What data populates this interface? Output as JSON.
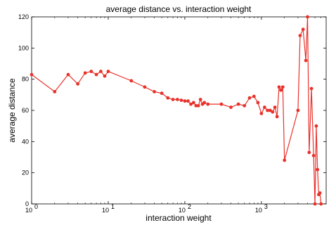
{
  "chart_data": {
    "type": "line",
    "title": "average distance vs. interaction weight",
    "xlabel": "interaction weight",
    "ylabel": "average distance",
    "xscale": "log",
    "xlim": [
      1,
      7000
    ],
    "ylim": [
      0,
      120
    ],
    "grid": false,
    "legend": "none",
    "xticks": [
      {
        "value": 1,
        "base": "10",
        "exp": "0"
      },
      {
        "value": 10,
        "base": "10",
        "exp": "1"
      },
      {
        "value": 100,
        "base": "10",
        "exp": "2"
      },
      {
        "value": 1000,
        "base": "10",
        "exp": "3"
      }
    ],
    "yticks": [
      0,
      20,
      40,
      60,
      80,
      100,
      120
    ],
    "series": [
      {
        "color": "#e8322c",
        "x": [
          1,
          2,
          3,
          4,
          5,
          6,
          7,
          8,
          9,
          10,
          20,
          30,
          40,
          50,
          60,
          70,
          80,
          90,
          100,
          110,
          120,
          130,
          140,
          150,
          160,
          170,
          180,
          200,
          300,
          400,
          500,
          600,
          700,
          800,
          900,
          1000,
          1100,
          1200,
          1300,
          1400,
          1500,
          1600,
          1700,
          1800,
          1900,
          2000,
          3000,
          3200,
          3500,
          3800,
          4000,
          4200,
          4500,
          4800,
          5000,
          5200,
          5400,
          5600,
          5800,
          6000
        ],
        "y": [
          83,
          72,
          83,
          77,
          84,
          85,
          83,
          85,
          82,
          85,
          79,
          75,
          72,
          71,
          68,
          67,
          67,
          66.5,
          66,
          66,
          64,
          65,
          63,
          63,
          67,
          64,
          65,
          64,
          64,
          62,
          64,
          63,
          68,
          69,
          65,
          58,
          62,
          60,
          60,
          59,
          62,
          56,
          75,
          73,
          75,
          28,
          60,
          108,
          112,
          92,
          120,
          33,
          74,
          31,
          0,
          50,
          22,
          6,
          7,
          0
        ]
      }
    ]
  }
}
